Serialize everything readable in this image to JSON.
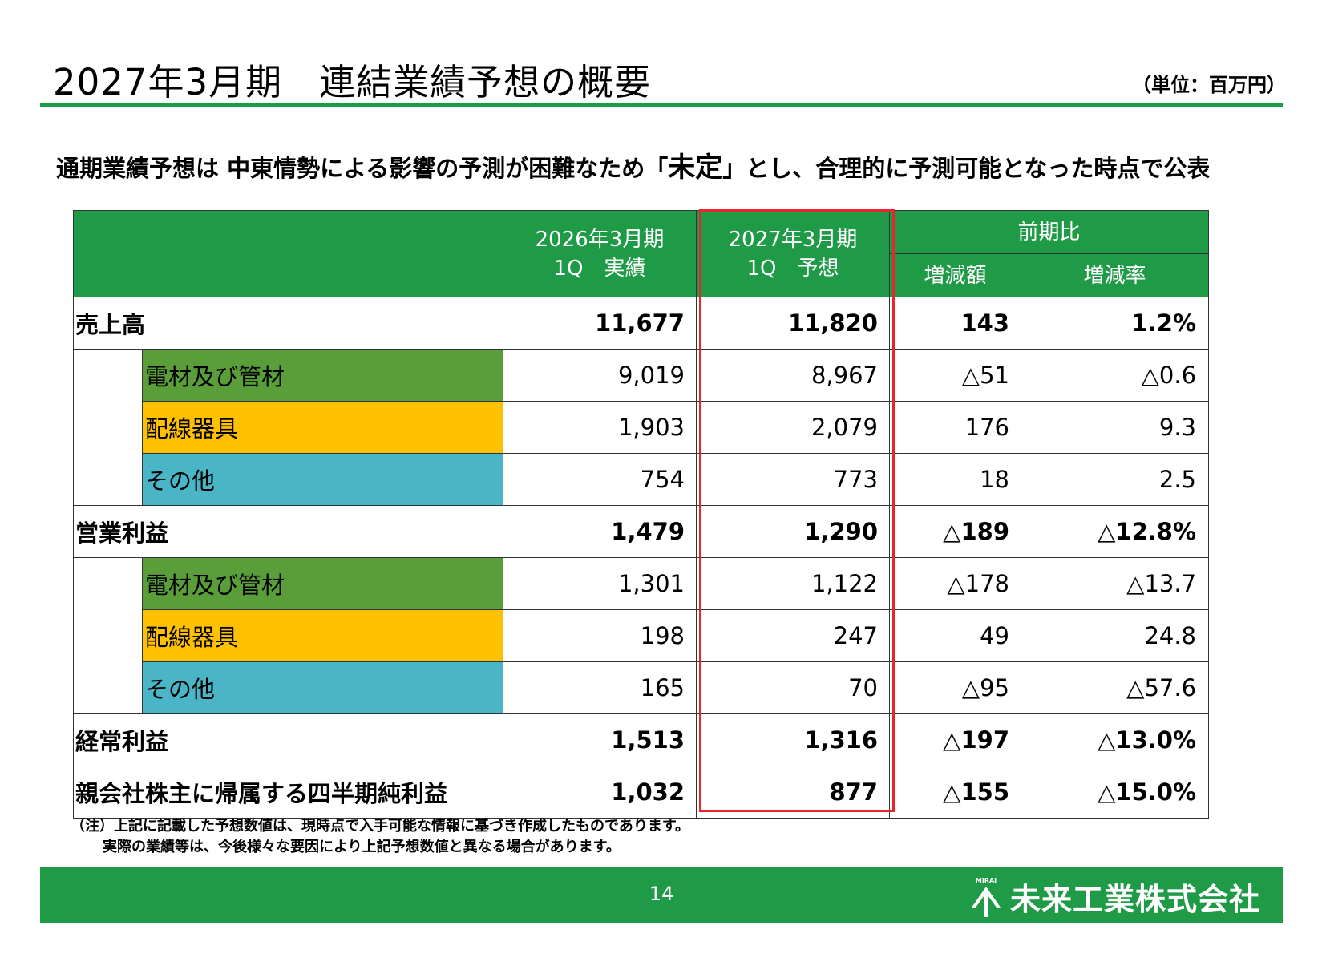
{
  "page": {
    "title": "2027年3月期　連結業績予想の概要",
    "unit": "（単位：百万円）",
    "headline_pre": "通期業績予想は 中東情勢による影響の予測が困難なため「",
    "headline_emph": "未定",
    "headline_post": "」とし、合理的に予測可能となった時点で公表"
  },
  "table": {
    "head": {
      "col_prev_l1": "2026年3月期",
      "col_prev_l2": "1Q　実績",
      "col_fcst_l1": "2027年3月期",
      "col_fcst_l2": "1Q　予想",
      "yoy": "前期比",
      "diff": "増減額",
      "rate": "増減率"
    },
    "rows": [
      {
        "label": "売上高",
        "prev": "11,677",
        "fcst": "11,820",
        "diff": "143",
        "rate": "1.2%"
      },
      {
        "label": "電材及び管材",
        "prev": "9,019",
        "fcst": "8,967",
        "diff": "△51",
        "rate": "△0.6"
      },
      {
        "label": "配線器具",
        "prev": "1,903",
        "fcst": "2,079",
        "diff": "176",
        "rate": "9.3"
      },
      {
        "label": "その他",
        "prev": "754",
        "fcst": "773",
        "diff": "18",
        "rate": "2.5"
      },
      {
        "label": "営業利益",
        "prev": "1,479",
        "fcst": "1,290",
        "diff": "△189",
        "rate": "△12.8%"
      },
      {
        "label": "電材及び管材",
        "prev": "1,301",
        "fcst": "1,122",
        "diff": "△178",
        "rate": "△13.7"
      },
      {
        "label": "配線器具",
        "prev": "198",
        "fcst": "247",
        "diff": "49",
        "rate": "24.8"
      },
      {
        "label": "その他",
        "prev": "165",
        "fcst": "70",
        "diff": "△95",
        "rate": "△57.6"
      },
      {
        "label": "経常利益",
        "prev": "1,513",
        "fcst": "1,316",
        "diff": "△197",
        "rate": "△13.0%"
      },
      {
        "label": "親会社株主に帰属する四半期純利益",
        "prev": "1,032",
        "fcst": "877",
        "diff": "△155",
        "rate": "△15.0%"
      }
    ]
  },
  "note": {
    "line1": "（注）上記に記載した予想数値は、現時点で入手可能な情報に基づき作成したものであります。",
    "line2": "実際の業績等は、今後様々な要因により上記予想数値と異なる場合があります。"
  },
  "footer": {
    "page_number": "14",
    "company": "未来工業株式会社",
    "logo_small": "MIRAI"
  },
  "colors": {
    "brand_green": "#1f9a46",
    "segment_green": "#5a9e3a",
    "segment_yellow": "#ffc000",
    "segment_cyan": "#4ab5c6",
    "highlight_red": "#e8262b"
  }
}
